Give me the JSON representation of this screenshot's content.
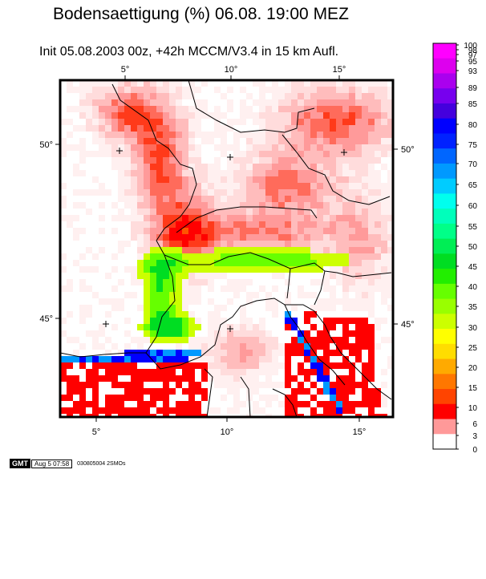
{
  "title": "Bodensaettigung (%)    06.08. 19:00 MEZ",
  "subtitle": "Init 05.08.2003 00z, +42h      MCCM/V3.4 in 15 km Aufl.",
  "map": {
    "top_ticks": [
      "5°",
      "10°",
      "15°"
    ],
    "bottom_ticks": [
      "5°",
      "10°",
      "15°"
    ],
    "left_ticks": [
      "50°",
      "45°"
    ],
    "right_ticks": [
      "50°",
      "45°"
    ]
  },
  "colorbar": {
    "labels": [
      "100",
      "98",
      "97",
      "95",
      "93",
      "89",
      "85",
      "80",
      "75",
      "70",
      "65",
      "60",
      "55",
      "50",
      "45",
      "40",
      "35",
      "30",
      "25",
      "20",
      "15",
      "10",
      "6",
      "3",
      "0"
    ],
    "colors": [
      "#ff00ff",
      "#dd00ee",
      "#aa00ee",
      "#7700ee",
      "#4400dd",
      "#0000ff",
      "#0022ff",
      "#0066ff",
      "#0099ff",
      "#00ccff",
      "#00ffee",
      "#00ffbb",
      "#00ff88",
      "#00ee55",
      "#00dd22",
      "#22ee00",
      "#66ff00",
      "#99ff00",
      "#ccff00",
      "#ffff00",
      "#ffdd00",
      "#ffaa00",
      "#ff7700",
      "#ff4400",
      "#ff0000",
      "#ff9999",
      "#ffffff"
    ]
  },
  "footer": {
    "gmt_logo": "GMT",
    "date": "Aug  5 07:58",
    "code": "030805004 2SMOs"
  }
}
